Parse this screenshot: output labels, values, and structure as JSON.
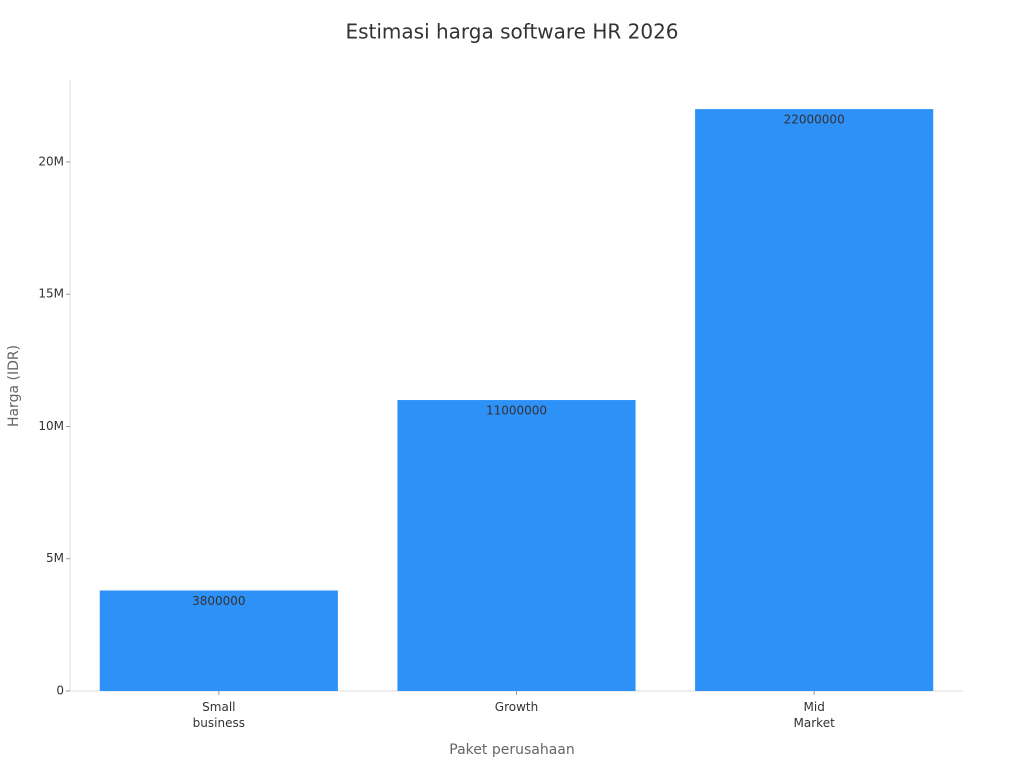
{
  "chart_data": {
    "type": "bar",
    "title": "Estimasi harga software HR 2026",
    "x_label": "Paket perusahaan",
    "y_label": "Harga (IDR)",
    "categories": [
      "Small\nbusiness",
      "Growth",
      "Mid\nMarket"
    ],
    "values": [
      3800000,
      11000000,
      22000000
    ],
    "color": "#2d91f7",
    "ylim": [
      0,
      23100000
    ],
    "yticks": [
      0,
      {
        "value": 5000000,
        "label": "5M"
      },
      {
        "value": 10000000,
        "label": "10M"
      },
      {
        "value": 15000000,
        "label": "15M"
      },
      {
        "value": 20000000,
        "label": "20M"
      }
    ]
  }
}
